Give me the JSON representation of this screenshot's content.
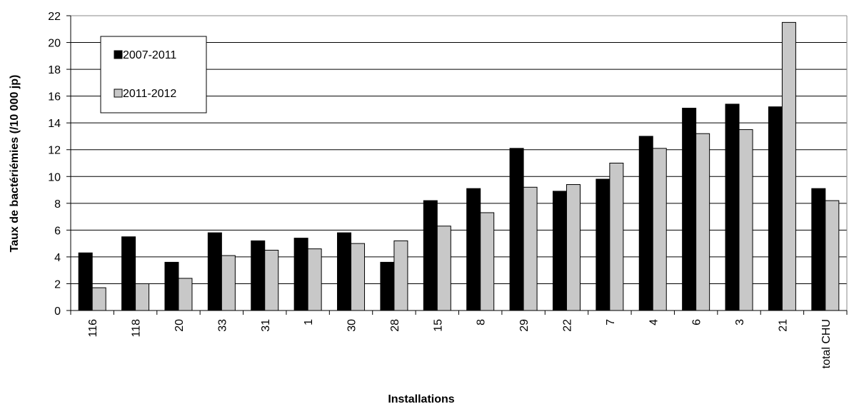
{
  "chart_data": {
    "type": "bar",
    "title": "",
    "xlabel": "Installations",
    "ylabel": "Taux de bactériémies (/10 000 jp)",
    "ylim": [
      0,
      22
    ],
    "yticks": [
      0,
      2,
      4,
      6,
      8,
      10,
      12,
      14,
      16,
      18,
      20,
      22
    ],
    "grid": true,
    "legend_position": "top-left",
    "categories": [
      "116",
      "118",
      "20",
      "33",
      "31",
      "1",
      "30",
      "28",
      "15",
      "8",
      "29",
      "22",
      "7",
      "4",
      "6",
      "3",
      "21",
      "total CHU"
    ],
    "series": [
      {
        "name": "2007-2011",
        "color": "#000000",
        "values": [
          4.3,
          5.5,
          3.6,
          5.8,
          5.2,
          5.4,
          5.8,
          3.6,
          8.2,
          9.1,
          12.1,
          8.9,
          9.8,
          13.0,
          15.1,
          15.4,
          15.2,
          9.1
        ]
      },
      {
        "name": "2011-2012",
        "color": "#c8c8c8",
        "values": [
          1.7,
          2.0,
          2.4,
          4.1,
          4.5,
          4.6,
          5.0,
          5.2,
          6.3,
          7.3,
          9.2,
          9.4,
          11.0,
          12.1,
          13.2,
          13.5,
          21.5,
          8.2
        ]
      }
    ]
  }
}
